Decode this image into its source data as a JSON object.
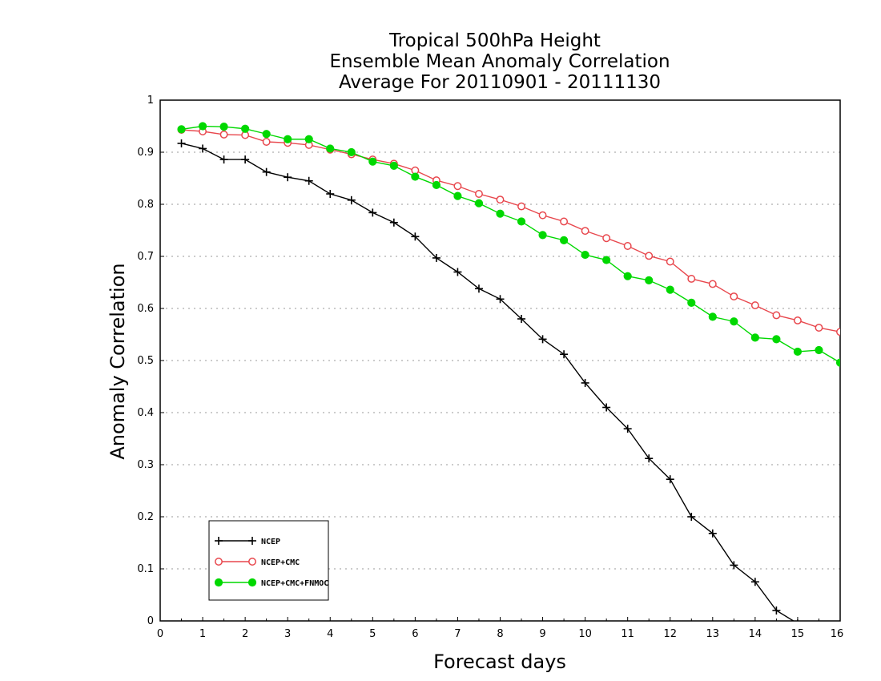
{
  "chart_data": {
    "type": "line",
    "title": [
      "Tropical 500hPa Height",
      "Ensemble Mean Anomaly Correlation",
      "Average For 20110901 - 20111130"
    ],
    "xlabel": "Forecast days",
    "ylabel": "Anomaly Correlation",
    "xlim": [
      0,
      16
    ],
    "ylim": [
      0,
      1
    ],
    "xticks": [
      "0",
      "1",
      "2",
      "3",
      "4",
      "5",
      "6",
      "7",
      "8",
      "9",
      "10",
      "11",
      "12",
      "13",
      "14",
      "15",
      "16"
    ],
    "yticks": [
      "0",
      "0.1",
      "0.2",
      "0.3",
      "0.4",
      "0.5",
      "0.6",
      "0.7",
      "0.8",
      "0.9",
      "1"
    ],
    "grid": "horizontal dotted",
    "legend_position": "bottom-left",
    "x": [
      0.5,
      1,
      1.5,
      2,
      2.5,
      3,
      3.5,
      4,
      4.5,
      5,
      5.5,
      6,
      6.5,
      7,
      7.5,
      8,
      8.5,
      9,
      9.5,
      10,
      10.5,
      11,
      11.5,
      12,
      12.5,
      13,
      13.5,
      14,
      14.5,
      15,
      15.5,
      16
    ],
    "series": [
      {
        "name": "NCEP",
        "color": "#000000",
        "marker": "plus",
        "values": [
          0.917,
          0.907,
          0.886,
          0.886,
          0.862,
          0.852,
          0.845,
          0.82,
          0.808,
          0.784,
          0.765,
          0.738,
          0.697,
          0.67,
          0.638,
          0.618,
          0.58,
          0.541,
          0.512,
          0.457,
          0.41,
          0.369,
          0.312,
          0.272,
          0.2,
          0.168,
          0.107,
          0.075,
          0.02,
          -0.005,
          null,
          null
        ]
      },
      {
        "name": "NCEP+CMC",
        "color": "#e8474d",
        "marker": "open-circle",
        "values": [
          0.943,
          0.94,
          0.934,
          0.933,
          0.92,
          0.918,
          0.914,
          0.905,
          0.896,
          0.886,
          0.878,
          0.865,
          0.846,
          0.835,
          0.82,
          0.809,
          0.796,
          0.779,
          0.767,
          0.749,
          0.735,
          0.72,
          0.701,
          0.69,
          0.657,
          0.647,
          0.623,
          0.606,
          0.587,
          0.577,
          0.563,
          0.555
        ]
      },
      {
        "name": "NCEP+CMC+FNMOC",
        "color": "#00d800",
        "marker": "filled-circle",
        "values": [
          0.944,
          0.95,
          0.949,
          0.945,
          0.935,
          0.925,
          0.925,
          0.907,
          0.9,
          0.882,
          0.874,
          0.853,
          0.837,
          0.816,
          0.802,
          0.782,
          0.767,
          0.741,
          0.731,
          0.703,
          0.693,
          0.662,
          0.654,
          0.636,
          0.611,
          0.584,
          0.575,
          0.544,
          0.541,
          0.517,
          0.52,
          0.496
        ]
      }
    ]
  }
}
